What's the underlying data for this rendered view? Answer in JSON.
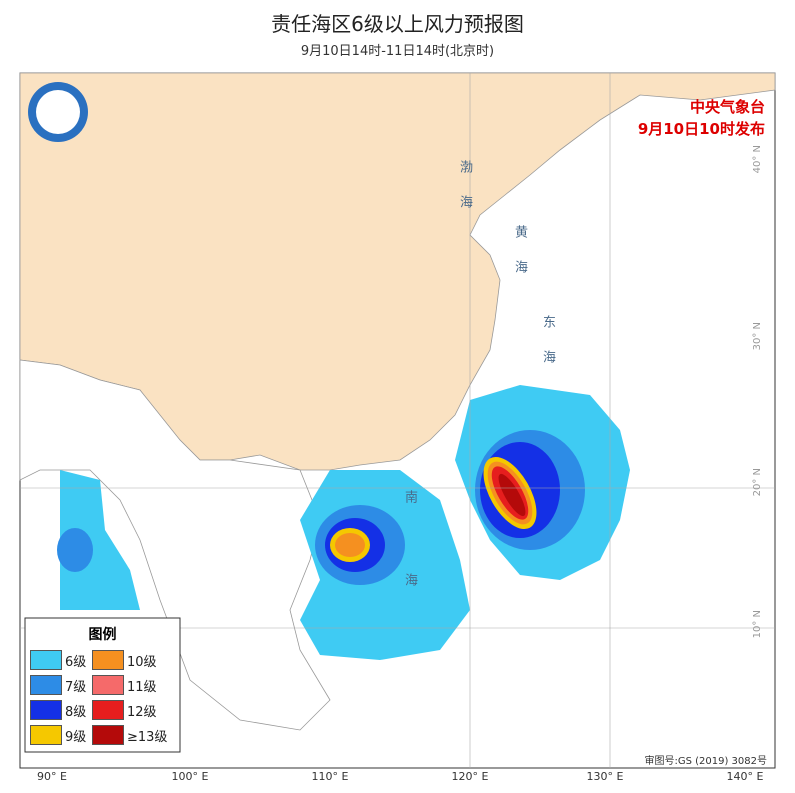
{
  "header": {
    "title": "责任海区6级以上风力预报图",
    "subtitle": "9月10日14时-11日14时(北京时)"
  },
  "issuer": {
    "name": "中央气象台",
    "time": "9月10日10时发布"
  },
  "legend": {
    "title": "图例",
    "items": [
      {
        "label": "6级",
        "color": "#3fcbf3"
      },
      {
        "label": "10级",
        "color": "#f59020"
      },
      {
        "label": "7级",
        "color": "#2d8ce6"
      },
      {
        "label": "11级",
        "color": "#f56a6a"
      },
      {
        "label": "8级",
        "color": "#1430e6"
      },
      {
        "label": "12级",
        "color": "#e61e1e"
      },
      {
        "label": "9级",
        "color": "#f5c800"
      },
      {
        "label": "≥13级",
        "color": "#b40a0a"
      }
    ]
  },
  "lon_labels": [
    "90° E",
    "100° E",
    "110° E",
    "120° E",
    "130° E",
    "140° E"
  ],
  "lat_labels": [
    "40° N",
    "30° N",
    "20° N",
    "10° N"
  ],
  "sea_labels": [
    "渤海",
    "黄海",
    "东海",
    "南海"
  ],
  "footer": {
    "approval": "审图号:GS (2019) 3082号"
  }
}
